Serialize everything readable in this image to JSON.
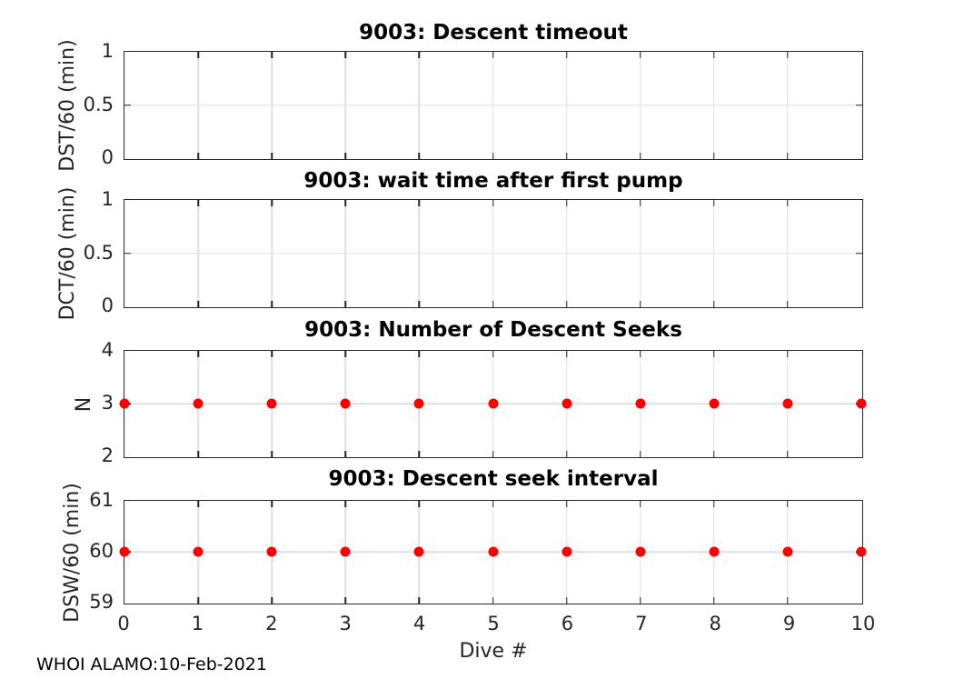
{
  "figure": {
    "background": "#ffffff",
    "axis_color": "#262626",
    "grid_color": "#e0e0e0",
    "marker_color": "#ff0000",
    "xlabel": "Dive #",
    "xlim": [
      0,
      10
    ],
    "x_ticks": [
      0,
      1,
      2,
      3,
      4,
      5,
      6,
      7,
      8,
      9,
      10
    ],
    "footer": "WHOI ALAMO:10-Feb-2021"
  },
  "chart_data": [
    {
      "type": "scatter",
      "title": "9003: Descent timeout",
      "ylabel": "DST/60 (min)",
      "ylim": [
        0,
        1
      ],
      "y_ticks": [
        0,
        0.5,
        1
      ],
      "xlim": [
        0,
        10
      ],
      "grid": true,
      "x": [],
      "y": []
    },
    {
      "type": "scatter",
      "title": "9003: wait time after first pump",
      "ylabel": "DCT/60 (min)",
      "ylim": [
        0,
        1
      ],
      "y_ticks": [
        0,
        0.5,
        1
      ],
      "xlim": [
        0,
        10
      ],
      "grid": true,
      "x": [],
      "y": []
    },
    {
      "type": "scatter",
      "title": "9003: Number of Descent Seeks",
      "ylabel": "N",
      "ylim": [
        2,
        4
      ],
      "y_ticks": [
        2,
        3,
        4
      ],
      "xlim": [
        0,
        10
      ],
      "grid": true,
      "x": [
        0,
        1,
        2,
        3,
        4,
        5,
        6,
        7,
        8,
        9,
        10
      ],
      "y": [
        3,
        3,
        3,
        3,
        3,
        3,
        3,
        3,
        3,
        3,
        3
      ]
    },
    {
      "type": "scatter",
      "title": "9003: Descent seek interval",
      "ylabel": "DSW/60 (min)",
      "ylim": [
        59,
        61
      ],
      "y_ticks": [
        59,
        60,
        61
      ],
      "xlim": [
        0,
        10
      ],
      "grid": true,
      "x": [
        0,
        1,
        2,
        3,
        4,
        5,
        6,
        7,
        8,
        9,
        10
      ],
      "y": [
        60,
        60,
        60,
        60,
        60,
        60,
        60,
        60,
        60,
        60,
        60
      ]
    }
  ]
}
